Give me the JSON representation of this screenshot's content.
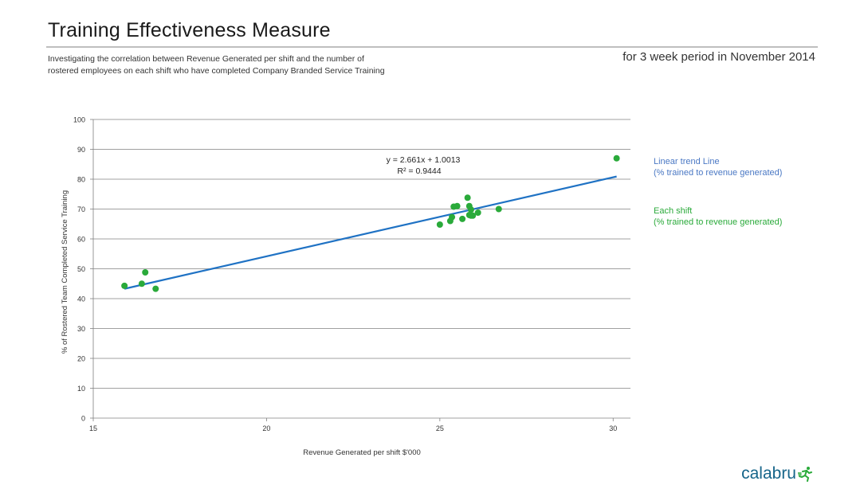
{
  "header": {
    "title": "Training Effectiveness Measure",
    "subtitle_line1": "Investigating the correlation between Revenue Generated per shift and the number of",
    "subtitle_line2": "rostered employees on each shift who have completed Company Branded Service Training",
    "period": "for 3 week period in November 2014"
  },
  "legend": {
    "trend_line1": "Linear trend Line",
    "trend_line2": "(% trained to revenue generated)",
    "shift_line1": "Each shift",
    "shift_line2": "(% trained to revenue generated)"
  },
  "logo": {
    "text": "calabru"
  },
  "colors": {
    "points": "#2aaa3a",
    "trend": "#1f72c4",
    "grid": "#808080",
    "logo": "#16658a"
  },
  "chart_data": {
    "type": "scatter",
    "xlabel": "Revenue Generated per shift $'000",
    "ylabel": "% of Rostered Team Completed Service Training",
    "xlim": [
      15,
      30.5
    ],
    "ylim": [
      0,
      100
    ],
    "x_ticks": [
      15,
      20,
      25,
      30
    ],
    "y_ticks": [
      0,
      10,
      20,
      30,
      40,
      50,
      60,
      70,
      80,
      90,
      100
    ],
    "grid": "horizontal",
    "series": [
      {
        "name": "Each shift",
        "points": [
          {
            "x": 15.9,
            "y": 44.3
          },
          {
            "x": 16.4,
            "y": 45.0
          },
          {
            "x": 16.5,
            "y": 48.8
          },
          {
            "x": 16.8,
            "y": 43.3
          },
          {
            "x": 25.0,
            "y": 64.8
          },
          {
            "x": 25.3,
            "y": 66.0
          },
          {
            "x": 25.35,
            "y": 67.3
          },
          {
            "x": 25.4,
            "y": 70.8
          },
          {
            "x": 25.5,
            "y": 71.0
          },
          {
            "x": 25.65,
            "y": 66.7
          },
          {
            "x": 25.8,
            "y": 73.8
          },
          {
            "x": 25.85,
            "y": 68.0
          },
          {
            "x": 25.85,
            "y": 71.0
          },
          {
            "x": 25.9,
            "y": 69.8
          },
          {
            "x": 25.9,
            "y": 67.8
          },
          {
            "x": 25.95,
            "y": 67.8
          },
          {
            "x": 26.1,
            "y": 68.8
          },
          {
            "x": 26.7,
            "y": 70.0
          },
          {
            "x": 30.1,
            "y": 87.0
          }
        ]
      }
    ],
    "trendline": {
      "name": "Linear trend Line",
      "x_range": [
        15.9,
        30.1
      ],
      "y_range": [
        43.3,
        80.9
      ],
      "equation": "y = 2.661x + 1.0013",
      "r_squared": "R² = 0.9444"
    }
  }
}
